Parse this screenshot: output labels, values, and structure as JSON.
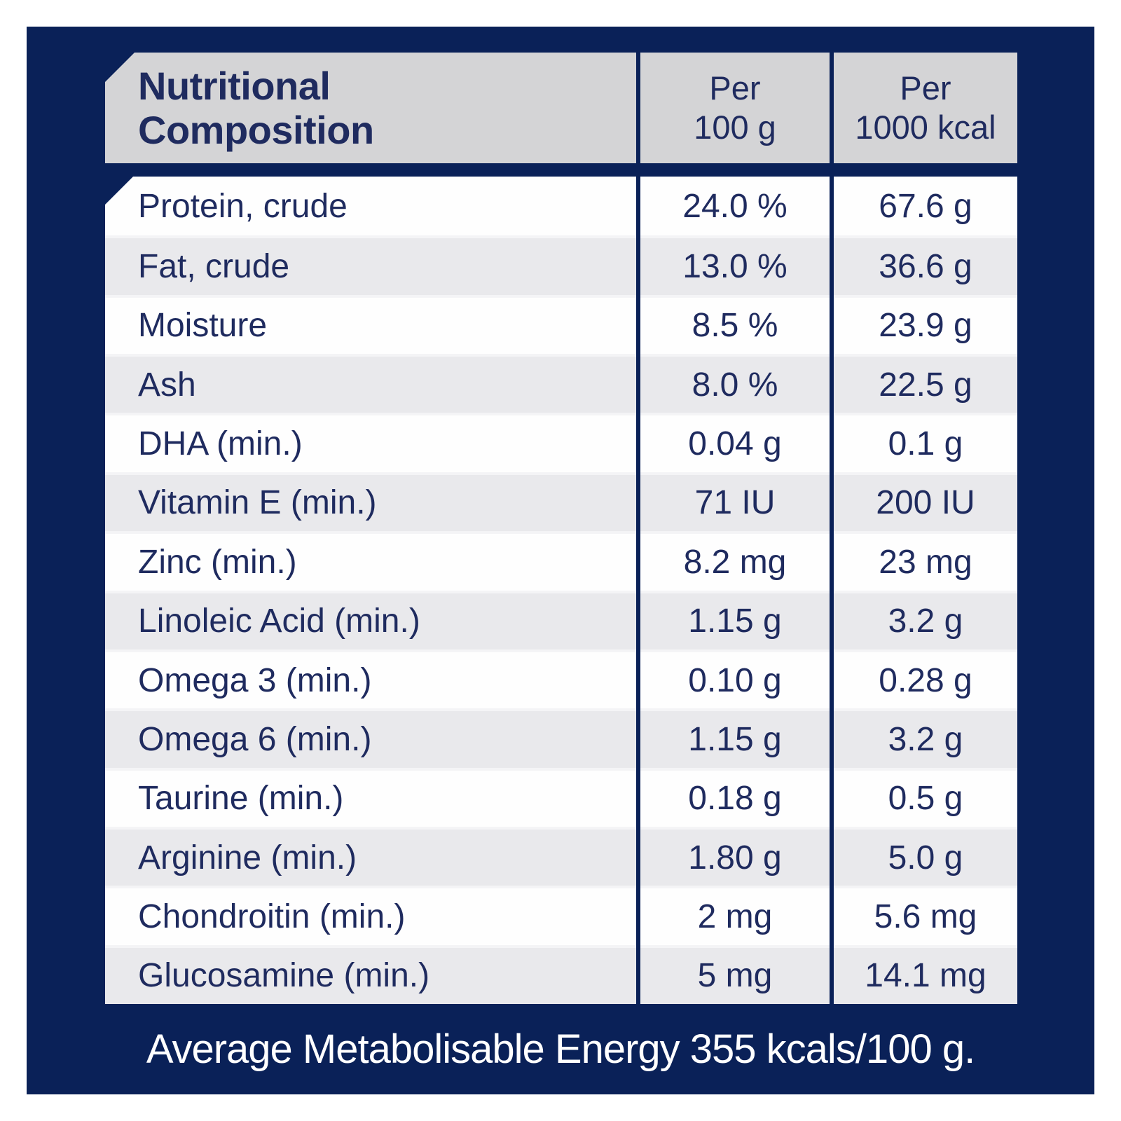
{
  "colors": {
    "page_background": "#ffffff",
    "panel_navy": "#0a2158",
    "text_navy": "#1f2b5f",
    "header_gray": "#d4d4d6",
    "row_gray": "#e9e9ec",
    "row_white": "#fefefe",
    "footer_text": "#ffffff"
  },
  "table": {
    "title_line1": "Nutritional",
    "title_line2": "Composition",
    "columns": {
      "per_100g_line1": "Per",
      "per_100g_line2": "100 g",
      "per_1000kcal_line1": "Per",
      "per_1000kcal_line2": "1000 kcal"
    },
    "rows": [
      {
        "label": "Protein, crude",
        "per_100g": "24.0 %",
        "per_1000kcal": "67.6 g"
      },
      {
        "label": "Fat, crude",
        "per_100g": "13.0 %",
        "per_1000kcal": "36.6 g"
      },
      {
        "label": "Moisture",
        "per_100g": "8.5 %",
        "per_1000kcal": "23.9 g"
      },
      {
        "label": "Ash",
        "per_100g": "8.0 %",
        "per_1000kcal": "22.5 g"
      },
      {
        "label": "DHA (min.)",
        "per_100g": "0.04 g",
        "per_1000kcal": "0.1 g"
      },
      {
        "label": "Vitamin E (min.)",
        "per_100g": "71 IU",
        "per_1000kcal": "200 IU"
      },
      {
        "label": "Zinc (min.)",
        "per_100g": "8.2 mg",
        "per_1000kcal": "23 mg"
      },
      {
        "label": "Linoleic Acid (min.)",
        "per_100g": "1.15 g",
        "per_1000kcal": "3.2 g"
      },
      {
        "label": "Omega 3 (min.)",
        "per_100g": "0.10 g",
        "per_1000kcal": "0.28 g"
      },
      {
        "label": "Omega 6 (min.)",
        "per_100g": "1.15 g",
        "per_1000kcal": "3.2 g"
      },
      {
        "label": "Taurine (min.)",
        "per_100g": "0.18 g",
        "per_1000kcal": "0.5 g"
      },
      {
        "label": "Arginine (min.)",
        "per_100g": "1.80 g",
        "per_1000kcal": "5.0 g"
      },
      {
        "label": "Chondroitin (min.)",
        "per_100g": "2 mg",
        "per_1000kcal": "5.6 mg"
      },
      {
        "label": "Glucosamine (min.)",
        "per_100g": "5 mg",
        "per_1000kcal": "14.1 mg"
      }
    ],
    "footer": "Average Metabolisable Energy 355 kcals/100 g."
  }
}
